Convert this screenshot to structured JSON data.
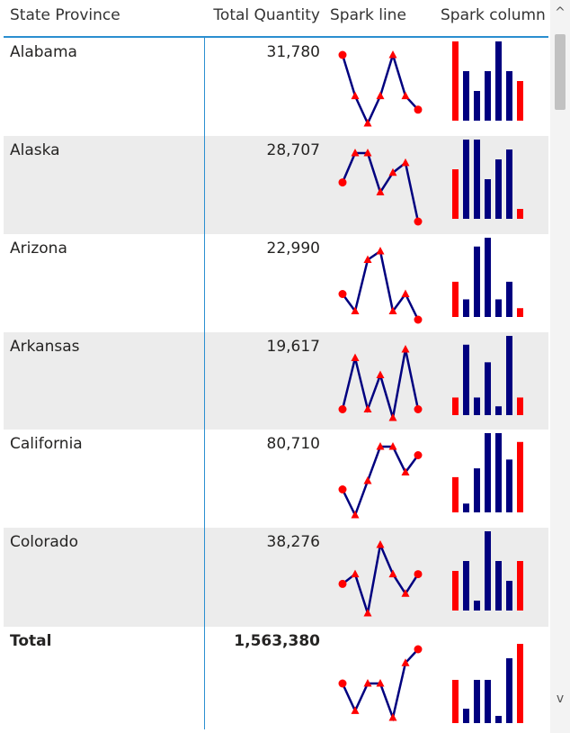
{
  "columns": {
    "state": "State Province",
    "quantity": "Total Quantity",
    "spark_line": "Spark line",
    "spark_column": "Spark column"
  },
  "colors": {
    "line": "#00007f",
    "highlight": "#ff0000",
    "bar": "#00007f",
    "shaded_row": "#ececec",
    "header_rule": "#2b8fd0"
  },
  "rows": [
    {
      "state": "Alabama",
      "quantity": "31,780",
      "series": [
        8,
        5,
        3,
        5,
        8,
        5,
        4
      ]
    },
    {
      "state": "Alaska",
      "quantity": "28,707",
      "series": [
        5,
        8,
        8,
        4,
        6,
        7,
        1
      ]
    },
    {
      "state": "Arizona",
      "quantity": "22,990",
      "series": [
        4,
        2,
        8,
        9,
        2,
        4,
        1
      ]
    },
    {
      "state": "Arkansas",
      "quantity": "19,617",
      "series": [
        2,
        8,
        2,
        6,
        1,
        9,
        2
      ]
    },
    {
      "state": "California",
      "quantity": "80,710",
      "series": [
        4,
        1,
        5,
        9,
        9,
        6,
        8
      ]
    },
    {
      "state": "Colorado",
      "quantity": "38,276",
      "series": [
        4,
        5,
        1,
        8,
        5,
        3,
        5
      ]
    }
  ],
  "total": {
    "state": "Total",
    "quantity": "1,563,380",
    "series": [
      6,
      2,
      6,
      6,
      1,
      9,
      11
    ]
  },
  "scrollbar": {
    "up_icon": "chevron-up-icon",
    "down_icon": "chevron-down-icon",
    "up_glyph": "^",
    "down_glyph": "v"
  }
}
